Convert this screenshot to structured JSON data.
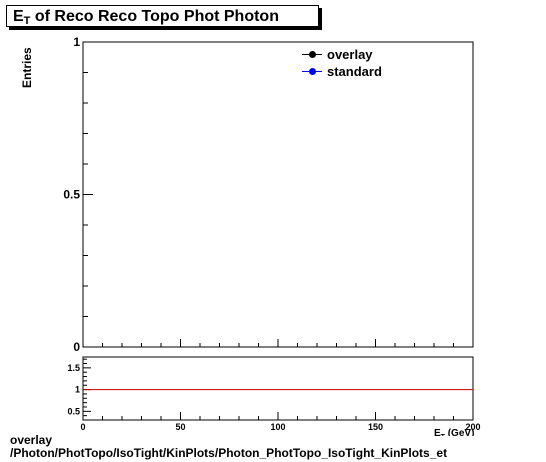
{
  "title": {
    "main": "E",
    "subscript": "T",
    "rest": " of Reco Reco Topo Phot Photon"
  },
  "legend": {
    "items": [
      {
        "label": "overlay",
        "color": "#000000"
      },
      {
        "label": "standard",
        "color": "#0000ff"
      }
    ]
  },
  "footer": {
    "line1": "overlay",
    "line2": "/Photon/PhotTopo/IsoTight/KinPlots/Photon_PhotTopo_IsoTight_KinPlots_et"
  },
  "chart_data": [
    {
      "type": "line",
      "title": "E_T of Reco Reco Topo Phot Photon",
      "xlabel": "E_T (GeV)",
      "ylabel": "Entries",
      "xlim": [
        0,
        200
      ],
      "ylim": [
        0,
        1
      ],
      "y_tick_labels": [
        "0",
        "0.5",
        "1"
      ],
      "series": [
        {
          "name": "overlay",
          "color": "#000000",
          "x": [],
          "y": []
        },
        {
          "name": "standard",
          "color": "#0000ff",
          "x": [],
          "y": []
        }
      ],
      "legend": "top-right",
      "grid": false
    },
    {
      "type": "line",
      "title": "",
      "xlabel": "E_T (GeV)",
      "ylabel": "",
      "xlim": [
        0,
        200
      ],
      "ylim": [
        0.3,
        1.75
      ],
      "x_tick_labels": [
        "0",
        "50",
        "100",
        "150",
        "200"
      ],
      "y_tick_labels": [
        "0.5",
        "1",
        "1.5"
      ],
      "reference_line": {
        "y": 1,
        "color": "#cc0000"
      },
      "series": [],
      "grid": false
    }
  ]
}
